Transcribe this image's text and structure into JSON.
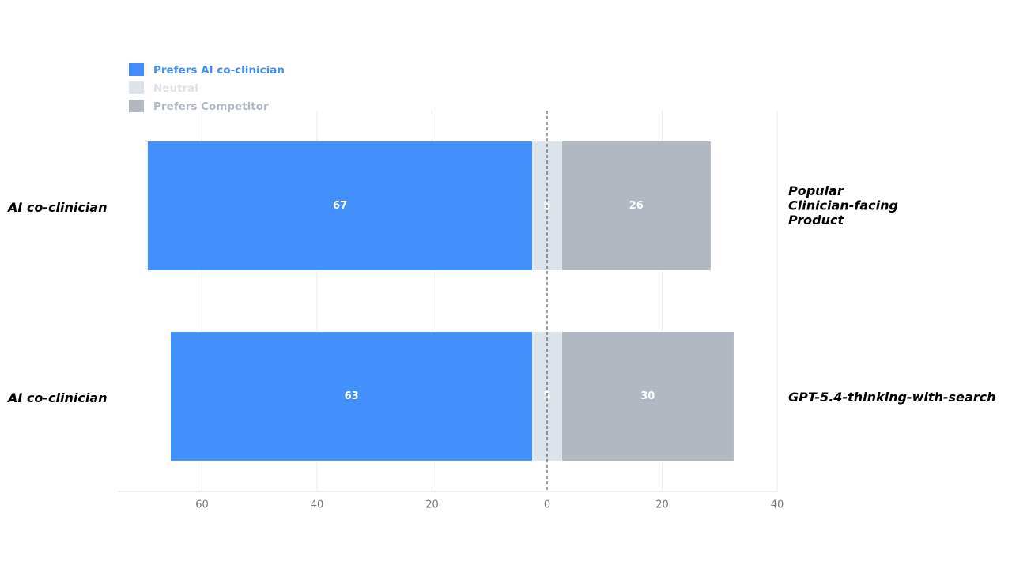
{
  "chart_data": {
    "type": "diverging_bar",
    "left_labels": [
      "AI co-clinician",
      "AI co-clinician"
    ],
    "right_labels": [
      "Popular Clinician-facing Product",
      "GPT-5.4-thinking-with-search"
    ],
    "series": [
      {
        "name": "Prefers AI co-clinician",
        "color": "#3f8efc",
        "values": [
          67,
          63
        ]
      },
      {
        "name": "Neutral",
        "color": "#dde3ea",
        "values": [
          5,
          5
        ]
      },
      {
        "name": "Prefers Competitor",
        "color": "#b1b8c2",
        "values": [
          26,
          30
        ]
      }
    ],
    "xlim": [
      -74.5,
      40
    ],
    "xticks": [
      {
        "value": -60,
        "label": "60"
      },
      {
        "value": -40,
        "label": "40"
      },
      {
        "value": -20,
        "label": "20"
      },
      0,
      20,
      40
    ],
    "grid": true
  }
}
